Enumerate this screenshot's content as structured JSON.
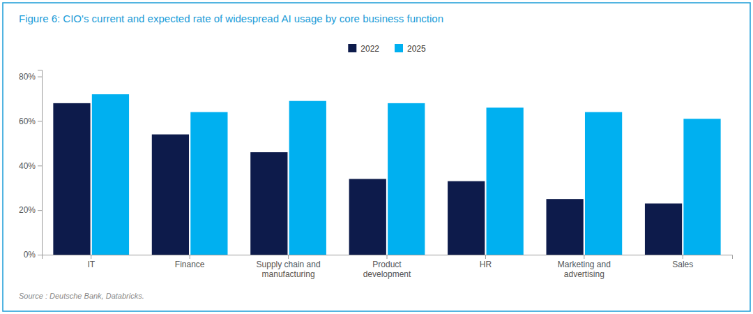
{
  "chart_data": {
    "type": "bar",
    "title": "Figure 6: CIO's current and expected rate of widespread AI usage by core business function",
    "source": "Source : Deutsche Bank, Databricks.",
    "categories": [
      "IT",
      "Finance",
      "Supply chain and\nmanufacturing",
      "Product\ndevelopment",
      "HR",
      "Marketing and\nadvertising",
      "Sales"
    ],
    "series": [
      {
        "name": "2022",
        "color": "#0d1b4b",
        "values": [
          0.68,
          0.54,
          0.46,
          0.34,
          0.33,
          0.25,
          0.23
        ]
      },
      {
        "name": "2025",
        "color": "#00b0f0",
        "values": [
          0.72,
          0.64,
          0.69,
          0.68,
          0.66,
          0.64,
          0.61
        ]
      }
    ],
    "ylim": [
      0,
      0.83
    ],
    "yticks": [
      {
        "value": 0.0,
        "label": "0%"
      },
      {
        "value": 0.2,
        "label": "20%"
      },
      {
        "value": 0.4,
        "label": "40%"
      },
      {
        "value": 0.6,
        "label": "60%"
      },
      {
        "value": 0.8,
        "label": "80%"
      }
    ],
    "grid": false,
    "legend": "top"
  }
}
